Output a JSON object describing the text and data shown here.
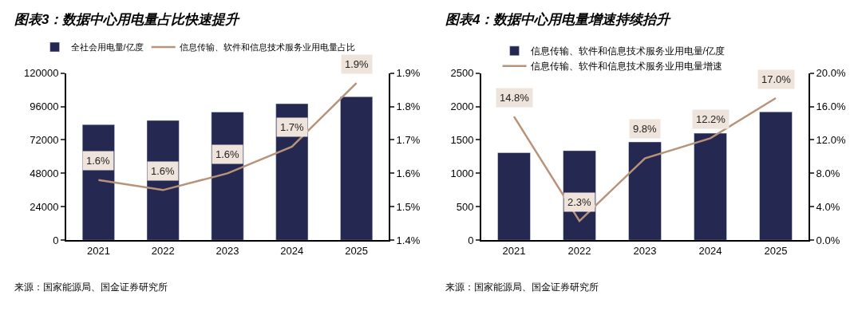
{
  "chart_data": [
    {
      "type": "bar",
      "title": "图表3：数据中心用电量占比快速提升",
      "categories": [
        "2021",
        "2022",
        "2023",
        "2024",
        "2025"
      ],
      "series": [
        {
          "name": "全社会用电量/亿度",
          "color": "#252850",
          "values": [
            83000,
            86000,
            92000,
            98000,
            103000
          ]
        },
        {
          "name": "信息传输、软件和信息技术服务业用电量占比",
          "type": "line",
          "axis": "y2",
          "color": "#b8937a",
          "values": [
            1.58,
            1.55,
            1.6,
            1.68,
            1.87
          ],
          "value_labels": [
            "1.6%",
            "1.6%",
            "1.6%",
            "1.7%",
            "1.9%"
          ]
        }
      ],
      "ylim": [
        0,
        120000
      ],
      "yticks": [
        0,
        24000,
        48000,
        72000,
        96000,
        120000
      ],
      "y2lim": [
        1.4,
        1.9
      ],
      "y2ticks": [
        {
          "value": 1.4,
          "label": "1.4%"
        },
        {
          "value": 1.5,
          "label": "1.5%"
        },
        {
          "value": 1.6,
          "label": "1.6%"
        },
        {
          "value": 1.7,
          "label": "1.7%"
        },
        {
          "value": 1.8,
          "label": "1.8%"
        },
        {
          "value": 1.9,
          "label": "1.9%"
        }
      ],
      "legend": "top",
      "marker": "none",
      "annotations": [
        "来源：国家能源局、国金证券研究所"
      ]
    },
    {
      "type": "bar",
      "title": "图表4：数据中心用电量增速持续抬升",
      "categories": [
        "2021",
        "2022",
        "2023",
        "2024",
        "2025"
      ],
      "series": [
        {
          "name": "信息传输、软件和信息技术服务业用电量/亿度",
          "color": "#252850",
          "values": [
            1310,
            1340,
            1470,
            1600,
            1920
          ]
        },
        {
          "name": "信息传输、软件和信息技术服务业用电量增速",
          "type": "line",
          "axis": "y2",
          "color": "#b8937a",
          "values": [
            14.8,
            2.3,
            9.8,
            12.2,
            17.0
          ],
          "value_labels": [
            "14.8%",
            "2.3%",
            "9.8%",
            "12.2%",
            "17.0%"
          ]
        }
      ],
      "ylim": [
        0,
        2500
      ],
      "yticks": [
        0,
        500,
        1000,
        1500,
        2000,
        2500
      ],
      "y2lim": [
        0,
        20
      ],
      "y2ticks": [
        {
          "value": 0,
          "label": "0.0%"
        },
        {
          "value": 4,
          "label": "4.0%"
        },
        {
          "value": 8,
          "label": "8.0%"
        },
        {
          "value": 12,
          "label": "12.0%"
        },
        {
          "value": 16,
          "label": "16.0%"
        },
        {
          "value": 20,
          "label": "20.0%"
        }
      ],
      "legend": "top",
      "marker": "none",
      "annotations": [
        "来源：国家能源局、国金证券研究所"
      ]
    }
  ]
}
